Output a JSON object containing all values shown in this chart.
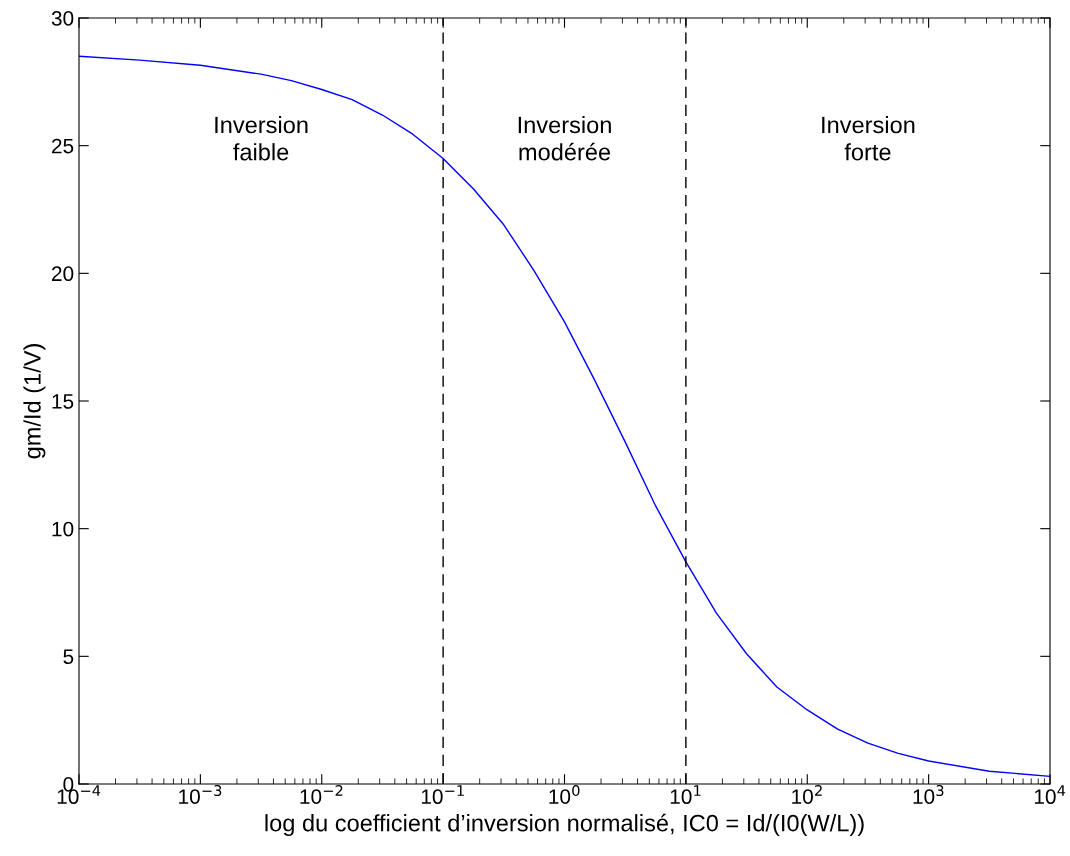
{
  "chart_data": {
    "type": "line",
    "xlabel": "log du coefficient d’inversion normalisé, IC0 = Id/(I0(W/L))",
    "ylabel": "gm/Id (1/V)",
    "log": "x",
    "grid": false,
    "marker": "none",
    "line_style": "solid",
    "xlim": [
      0.0001,
      10000
    ],
    "xticks": [
      {
        "value": 0.0001,
        "label": "10$^{−4}$"
      },
      {
        "value": 0.001,
        "label": "10$^{−3}$"
      },
      {
        "value": 0.01,
        "label": "10$^{−2}$"
      },
      {
        "value": 0.1,
        "label": "10$^{−1}$"
      },
      {
        "value": 1,
        "label": "10$^{0}$"
      },
      {
        "value": 10,
        "label": "10$^{1}$"
      },
      {
        "value": 100,
        "label": "10$^{2}$"
      },
      {
        "value": 1000,
        "label": "10$^{3}$"
      },
      {
        "value": 10000,
        "label": "10$^{4}$"
      }
    ],
    "ylim": [
      0,
      30
    ],
    "yticks": [
      0,
      5,
      10,
      15,
      20,
      25,
      30
    ],
    "x": [
      0.0001,
      0.000316,
      0.001,
      0.00316,
      0.00562,
      0.01,
      0.0178,
      0.0316,
      0.0562,
      0.1,
      0.178,
      0.316,
      0.562,
      1,
      1.78,
      3.16,
      5.62,
      10,
      17.8,
      31.6,
      56.2,
      100,
      178,
      316,
      562,
      1000,
      3162,
      10000
    ],
    "series": [
      {
        "color": "#0000ff",
        "values": [
          28.5,
          28.35,
          28.15,
          27.8,
          27.55,
          27.2,
          26.8,
          26.2,
          25.45,
          24.5,
          23.3,
          21.9,
          20.1,
          18.1,
          15.8,
          13.4,
          10.9,
          8.7,
          6.7,
          5.1,
          3.8,
          2.9,
          2.15,
          1.6,
          1.2,
          0.9,
          0.5,
          0.3
        ]
      }
    ],
    "ref_lines": [
      {
        "axis": "x",
        "value": 0.1,
        "label": null,
        "color": "#000000",
        "line_style": "dashed"
      },
      {
        "axis": "x",
        "value": 10,
        "label": null,
        "color": "#000000",
        "line_style": "dashed"
      }
    ],
    "annotations": [
      "Inversion\nfaible",
      "Inversion\nmodérée",
      "Inversion\nforte"
    ]
  }
}
